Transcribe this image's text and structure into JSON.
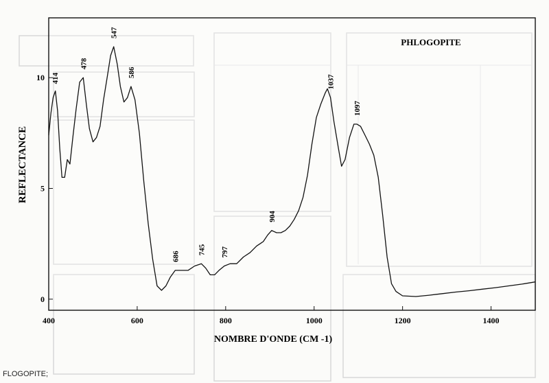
{
  "caption": "FLOGOPITE;",
  "chart_data": {
    "type": "line",
    "title": "PHLOGOPITE",
    "xlabel": "NOMBRE D'ONDE (CM -1)",
    "ylabel": "REFLECTANCE",
    "xlim": [
      400,
      1500
    ],
    "ylim": [
      -0.5,
      12.7
    ],
    "x_ticks": [
      400,
      600,
      800,
      1000,
      1200,
      1400
    ],
    "y_ticks": [
      0,
      5,
      10
    ],
    "grid": false,
    "series": [
      {
        "x": [
          400,
          405,
          410,
          415,
          420,
          425,
          430,
          436,
          442,
          448,
          455,
          462,
          470,
          478,
          485,
          492,
          500,
          508,
          516,
          524,
          532,
          540,
          547,
          555,
          562,
          570,
          578,
          586,
          595,
          605,
          615,
          625,
          635,
          645,
          655,
          665,
          675,
          686,
          700,
          715,
          730,
          745,
          755,
          765,
          775,
          785,
          797,
          810,
          825,
          840,
          855,
          870,
          885,
          895,
          904,
          915,
          925,
          935,
          945,
          955,
          965,
          975,
          985,
          995,
          1005,
          1015,
          1025,
          1030,
          1037,
          1045,
          1055,
          1062,
          1070,
          1080,
          1090,
          1097,
          1105,
          1115,
          1125,
          1135,
          1145,
          1155,
          1165,
          1175,
          1185,
          1200,
          1230,
          1260,
          1290,
          1320,
          1350,
          1380,
          1410,
          1440,
          1470,
          1500
        ],
        "y": [
          7.4,
          8.4,
          9.1,
          9.4,
          8.5,
          6.8,
          5.5,
          5.5,
          6.3,
          6.1,
          7.4,
          8.6,
          9.8,
          10.0,
          8.8,
          7.7,
          7.1,
          7.3,
          7.8,
          9.0,
          10.0,
          11.0,
          11.4,
          10.6,
          9.6,
          8.9,
          9.1,
          9.6,
          9.0,
          7.5,
          5.3,
          3.4,
          1.8,
          0.6,
          0.4,
          0.6,
          1.0,
          1.3,
          1.3,
          1.3,
          1.5,
          1.6,
          1.4,
          1.1,
          1.1,
          1.3,
          1.5,
          1.6,
          1.6,
          1.9,
          2.1,
          2.4,
          2.6,
          2.9,
          3.1,
          3.0,
          3.0,
          3.1,
          3.3,
          3.6,
          4.0,
          4.6,
          5.6,
          7.0,
          8.2,
          8.8,
          9.3,
          9.5,
          9.1,
          8.0,
          6.8,
          6.0,
          6.3,
          7.3,
          7.9,
          7.9,
          7.8,
          7.4,
          7.0,
          6.5,
          5.5,
          3.8,
          1.9,
          0.7,
          0.35,
          0.15,
          0.12,
          0.18,
          0.25,
          0.32,
          0.38,
          0.45,
          0.52,
          0.6,
          0.68,
          0.78
        ]
      }
    ],
    "peaks": [
      {
        "x": 414,
        "label": "414"
      },
      {
        "x": 478,
        "label": "478"
      },
      {
        "x": 547,
        "label": "547"
      },
      {
        "x": 586,
        "label": "586"
      },
      {
        "x": 686,
        "label": "686"
      },
      {
        "x": 745,
        "label": "745"
      },
      {
        "x": 797,
        "label": "797"
      },
      {
        "x": 904,
        "label": "904"
      },
      {
        "x": 1037,
        "label": "1037"
      },
      {
        "x": 1097,
        "label": "1097"
      }
    ],
    "colors": {
      "line": "#111111",
      "axis": "#111111",
      "background": "#ffffff"
    }
  }
}
